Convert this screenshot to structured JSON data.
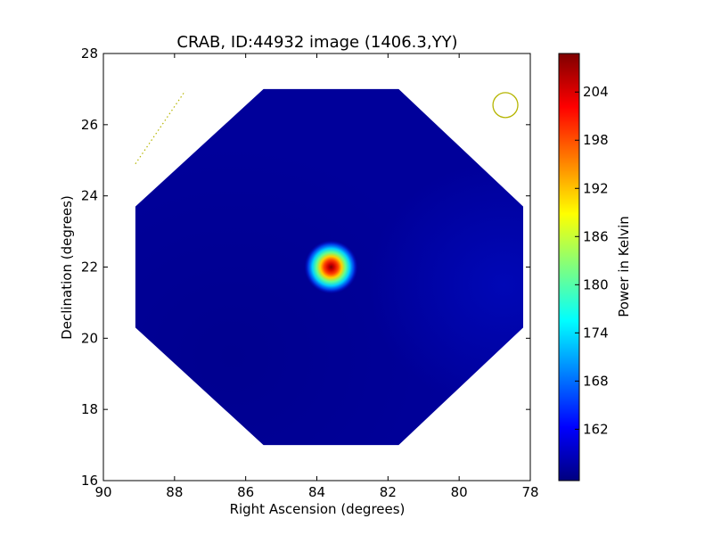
{
  "chart_data": {
    "type": "heatmap",
    "title": "CRAB, ID:44932 image (1406.3,YY)",
    "xlabel": "Right Ascension (degrees)",
    "ylabel": "Declination (degrees)",
    "xlim": [
      90,
      78
    ],
    "ylim": [
      16,
      28
    ],
    "x_ticks": [
      "90",
      "88",
      "86",
      "84",
      "82",
      "80",
      "78"
    ],
    "y_ticks": [
      "16",
      "18",
      "20",
      "22",
      "24",
      "26",
      "28"
    ],
    "colorbar": {
      "label": "Power in Kelvin",
      "range": [
        155.6,
        208.8
      ],
      "colormap": "jet",
      "ticks": [
        "162",
        "168",
        "174",
        "180",
        "186",
        "192",
        "198",
        "204"
      ]
    },
    "background_level": 157,
    "image_region": {
      "shape": "octagon",
      "vertices_deg": [
        [
          85.5,
          27
        ],
        [
          81.7,
          27
        ],
        [
          78.2,
          23.7
        ],
        [
          78.2,
          20.3
        ],
        [
          81.7,
          17
        ],
        [
          85.5,
          17
        ],
        [
          89.1,
          20.3
        ],
        [
          89.1,
          23.7
        ]
      ]
    },
    "sources": [
      {
        "ra": 83.6,
        "dec": 22.0,
        "peak": 208
      }
    ],
    "beam_marker": {
      "ra": 78.7,
      "dec": 26.55,
      "radius_deg": 0.35,
      "color": "#b5b500"
    },
    "dotted_segment": {
      "start": [
        89.1,
        24.9
      ],
      "end": [
        87.7,
        26.95
      ],
      "color": "#b5b500"
    }
  }
}
